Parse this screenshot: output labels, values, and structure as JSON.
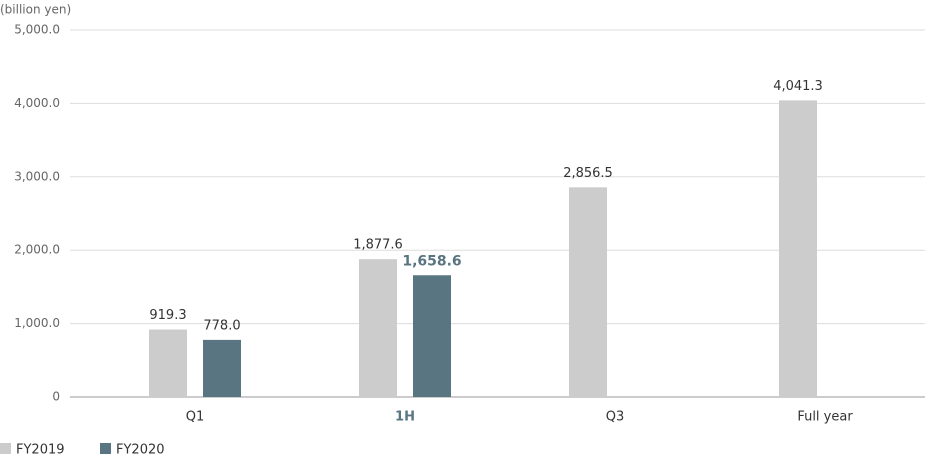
{
  "chart_data": {
    "type": "bar",
    "y_label": "(billion yen)",
    "categories": [
      "Q1",
      "1H",
      "Q3",
      "Full year"
    ],
    "series": [
      {
        "name": "FY2019",
        "color": "#cccccc",
        "values": [
          919.3,
          1877.6,
          2856.5,
          4041.3
        ],
        "value_labels": [
          "919.3",
          "1,877.6",
          "2,856.5",
          "4,041.3"
        ]
      },
      {
        "name": "FY2020",
        "color": "#587581",
        "values": [
          778.0,
          1658.6,
          null,
          null
        ],
        "value_labels": [
          "778.0",
          "1,658.6",
          null,
          null
        ]
      }
    ],
    "highlight_index": 1,
    "ylim": [
      0,
      5000
    ],
    "yticks": [
      0,
      {
        "value": 1000,
        "label": "1,000.0"
      },
      {
        "value": 2000,
        "label": "2,000.0"
      },
      {
        "value": 3000,
        "label": "3,000.0"
      },
      {
        "value": 4000,
        "label": "4,000.0"
      },
      {
        "value": 5000,
        "label": "5,000.0"
      }
    ],
    "grid": true
  }
}
